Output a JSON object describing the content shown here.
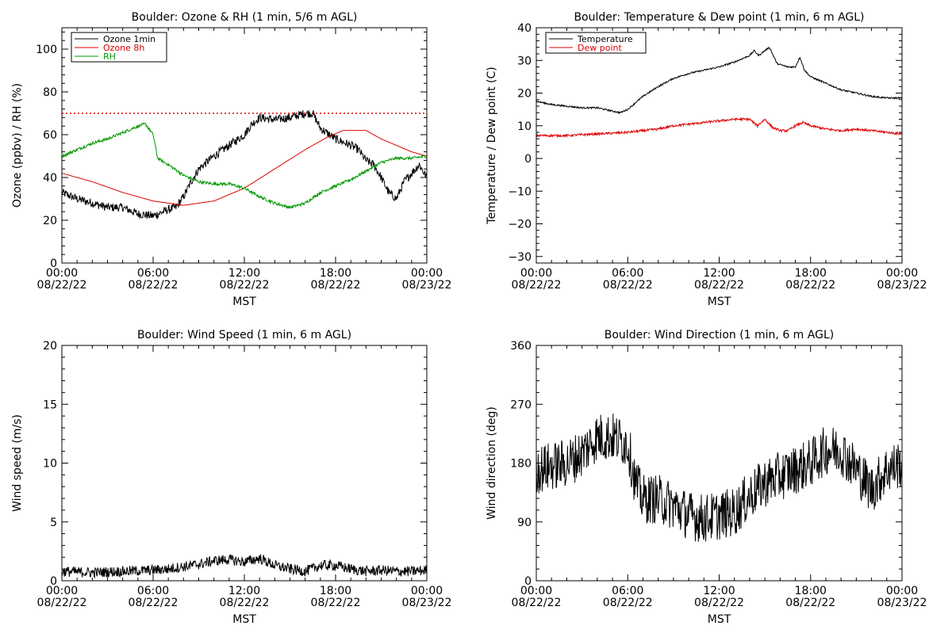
{
  "chart_data": [
    {
      "id": "ozone_rh",
      "type": "line",
      "title": "Boulder: Ozone & RH (1 min, 5/6 m AGL)",
      "xlabel": "MST",
      "ylabel": "Ozone (ppbv) / RH (%)",
      "xlim": [
        0,
        24
      ],
      "ylim": [
        0,
        110
      ],
      "x_ticks": [
        {
          "x": 0,
          "time": "00:00",
          "date": "08/22/22"
        },
        {
          "x": 6,
          "time": "06:00",
          "date": "08/22/22"
        },
        {
          "x": 12,
          "time": "12:00",
          "date": "08/22/22"
        },
        {
          "x": 18,
          "time": "18:00",
          "date": "08/22/22"
        },
        {
          "x": 24,
          "time": "00:00",
          "date": "08/23/22"
        }
      ],
      "y_ticks": [
        0,
        20,
        40,
        60,
        80,
        100
      ],
      "y_tick_labels": [
        "0",
        "20",
        "40",
        "60",
        "80",
        "100"
      ],
      "reference_line": {
        "y": 70,
        "color": "#dd0000",
        "style": "dotted"
      },
      "legend": {
        "position": "top-left"
      },
      "series": [
        {
          "name": "Ozone 1min",
          "color": "#000000",
          "noise": 2.0,
          "x": [
            0,
            1,
            2,
            3,
            4,
            5,
            6,
            7,
            7.5,
            8,
            8.5,
            9,
            10,
            11,
            12,
            12.5,
            13,
            14,
            15,
            16,
            16.5,
            17,
            18,
            19,
            19.5,
            20,
            20.5,
            21,
            21.5,
            22,
            22.5,
            23,
            23.5,
            24
          ],
          "y": [
            33,
            30,
            28,
            26,
            26,
            23,
            22,
            25,
            26,
            31,
            38,
            44,
            50,
            55,
            60,
            65,
            68,
            67,
            68,
            70,
            70,
            63,
            58,
            55,
            53,
            48,
            46,
            40,
            33,
            30,
            38,
            42,
            46,
            40
          ]
        },
        {
          "name": "Ozone 8h",
          "color": "#dd0000",
          "noise": 0,
          "x": [
            0,
            2,
            4,
            6,
            8,
            10,
            12,
            14,
            16,
            17.5,
            18.5,
            20,
            21,
            22,
            23,
            24
          ],
          "y": [
            42,
            38,
            33,
            29,
            27,
            29,
            35,
            44,
            53,
            59,
            62,
            62,
            58,
            55,
            52,
            50
          ]
        },
        {
          "name": "RH",
          "color": "#009900",
          "noise": 0.7,
          "x": [
            0,
            1,
            2,
            3,
            4,
            5,
            5.5,
            6,
            6.3,
            7,
            8,
            9,
            10,
            11,
            12,
            13,
            14,
            15,
            16,
            17,
            18,
            19,
            20,
            21,
            22,
            23,
            24
          ],
          "y": [
            50,
            53,
            56,
            58,
            61,
            64,
            65,
            60,
            49,
            46,
            41,
            38,
            37,
            37,
            35,
            31,
            28,
            26,
            28,
            33,
            36,
            39,
            43,
            47,
            49,
            49,
            50
          ]
        }
      ]
    },
    {
      "id": "temp_dew",
      "type": "line",
      "title": "Boulder: Temperature & Dew point (1 min, 6 m AGL)",
      "xlabel": "MST",
      "ylabel": "Temperature / Dew point (C)",
      "xlim": [
        0,
        24
      ],
      "ylim": [
        -32,
        40
      ],
      "x_ticks": [
        {
          "x": 0,
          "time": "00:00",
          "date": "08/22/22"
        },
        {
          "x": 6,
          "time": "06:00",
          "date": "08/22/22"
        },
        {
          "x": 12,
          "time": "12:00",
          "date": "08/22/22"
        },
        {
          "x": 18,
          "time": "18:00",
          "date": "08/22/22"
        },
        {
          "x": 24,
          "time": "00:00",
          "date": "08/23/22"
        }
      ],
      "y_ticks": [
        -30,
        -20,
        -10,
        0,
        10,
        20,
        30,
        40
      ],
      "y_tick_labels": [
        "−30",
        "−20",
        "−10",
        "0",
        "10",
        "20",
        "30",
        "40"
      ],
      "legend": {
        "position": "top-left"
      },
      "series": [
        {
          "name": "Temperature",
          "color": "#000000",
          "noise": 0.25,
          "x": [
            0,
            1,
            2,
            3,
            4,
            5,
            5.5,
            6,
            7,
            8,
            9,
            10,
            11,
            12,
            13,
            14,
            14.3,
            14.6,
            15,
            15.3,
            15.8,
            16.5,
            17,
            17.3,
            17.6,
            18,
            19,
            20,
            21,
            22,
            23,
            24
          ],
          "y": [
            17.5,
            16.5,
            16,
            15.5,
            15.5,
            14.5,
            14,
            15,
            19,
            22,
            24.5,
            26,
            27,
            28,
            29.5,
            31.5,
            33,
            31.5,
            33,
            34,
            29,
            28,
            28,
            31,
            27,
            25,
            23,
            21,
            20,
            19,
            18.5,
            18.5
          ]
        },
        {
          "name": "Dew point",
          "color": "#dd0000",
          "noise": 0.35,
          "x": [
            0,
            2,
            4,
            6,
            7,
            8,
            9,
            10,
            11,
            12,
            13,
            14,
            14.5,
            15,
            15.5,
            16,
            16.5,
            17,
            17.5,
            18,
            19,
            20,
            21,
            22,
            23,
            24
          ],
          "y": [
            7,
            7,
            7.5,
            8,
            8.5,
            9,
            10,
            10.5,
            11,
            11.5,
            12,
            12,
            10,
            12,
            9.5,
            8.5,
            8.5,
            10,
            11,
            10,
            9,
            8.5,
            9,
            8.5,
            8,
            7.5
          ]
        }
      ]
    },
    {
      "id": "wind_speed",
      "type": "line",
      "title": "Boulder: Wind Speed (1 min, 6 m AGL)",
      "xlabel": "MST",
      "ylabel": "Wind speed (m/s)",
      "xlim": [
        0,
        24
      ],
      "ylim": [
        0,
        20
      ],
      "x_ticks": [
        {
          "x": 0,
          "time": "00:00",
          "date": "08/22/22"
        },
        {
          "x": 6,
          "time": "06:00",
          "date": "08/22/22"
        },
        {
          "x": 12,
          "time": "12:00",
          "date": "08/22/22"
        },
        {
          "x": 18,
          "time": "18:00",
          "date": "08/22/22"
        },
        {
          "x": 24,
          "time": "00:00",
          "date": "08/23/22"
        }
      ],
      "y_ticks": [
        0,
        5,
        10,
        15,
        20
      ],
      "y_tick_labels": [
        "0",
        "5",
        "10",
        "15",
        "20"
      ],
      "series": [
        {
          "name": "",
          "color": "#000000",
          "noise": 0.45,
          "floor": 0,
          "x": [
            0,
            2,
            4,
            6,
            7,
            8,
            9,
            10,
            11,
            12,
            13,
            14,
            15,
            16,
            17,
            18,
            19,
            20,
            21,
            22,
            23,
            24
          ],
          "y": [
            0.8,
            0.7,
            0.8,
            0.9,
            1.0,
            1.2,
            1.4,
            1.7,
            1.8,
            1.6,
            1.9,
            1.3,
            1.0,
            0.8,
            1.3,
            1.3,
            1.0,
            0.8,
            0.9,
            0.8,
            0.8,
            0.9
          ]
        }
      ]
    },
    {
      "id": "wind_dir",
      "type": "line",
      "title": "Boulder: Wind Direction (1 min, 6 m AGL)",
      "xlabel": "MST",
      "ylabel": "Wind direction (deg)",
      "xlim": [
        0,
        24
      ],
      "ylim": [
        0,
        360
      ],
      "x_ticks": [
        {
          "x": 0,
          "time": "00:00",
          "date": "08/22/22"
        },
        {
          "x": 6,
          "time": "06:00",
          "date": "08/22/22"
        },
        {
          "x": 12,
          "time": "12:00",
          "date": "08/22/22"
        },
        {
          "x": 18,
          "time": "18:00",
          "date": "08/22/22"
        },
        {
          "x": 24,
          "time": "00:00",
          "date": "08/23/22"
        }
      ],
      "y_ticks": [
        0,
        90,
        180,
        270,
        360
      ],
      "y_tick_labels": [
        "0",
        "90",
        "180",
        "270",
        "360"
      ],
      "series": [
        {
          "name": "",
          "color": "#000000",
          "noise": 38,
          "floor": 5,
          "ceil": 355,
          "x": [
            0,
            1,
            2,
            3,
            4,
            5,
            6,
            6.5,
            7,
            8,
            9,
            10,
            11,
            12,
            13,
            14,
            15,
            16,
            17,
            18,
            19,
            20,
            21,
            22,
            23,
            24
          ],
          "y": [
            170,
            175,
            180,
            195,
            220,
            220,
            210,
            150,
            125,
            125,
            115,
            100,
            95,
            100,
            105,
            130,
            150,
            160,
            170,
            180,
            200,
            200,
            170,
            140,
            170,
            180
          ]
        }
      ]
    }
  ]
}
